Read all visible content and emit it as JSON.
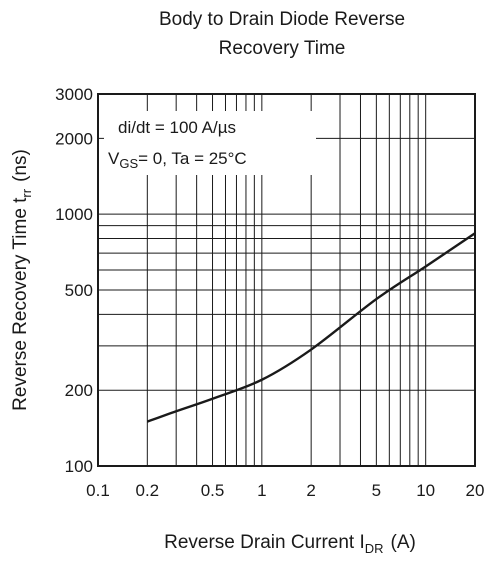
{
  "chart_data": {
    "type": "line",
    "title_line1": "Body to Drain Diode Reverse",
    "title_line2": "Recovery Time",
    "xlabel_main": "Reverse Drain Current  I",
    "xlabel_sub": "DR",
    "xlabel_unit": "(A)",
    "ylabel_main": "Reverse Recovery Time  t",
    "ylabel_sub": "rr",
    "ylabel_unit": "(ns)",
    "xscale": "log",
    "yscale": "log",
    "xlim": [
      0.1,
      20
    ],
    "ylim": [
      100,
      3000
    ],
    "x_ticks": [
      {
        "value": 0.1,
        "label": "0.1"
      },
      {
        "value": 0.2,
        "label": "0.2"
      },
      {
        "value": 0.5,
        "label": "0.5"
      },
      {
        "value": 1,
        "label": "1"
      },
      {
        "value": 2,
        "label": "2"
      },
      {
        "value": 5,
        "label": "5"
      },
      {
        "value": 10,
        "label": "10"
      },
      {
        "value": 20,
        "label": "20"
      }
    ],
    "y_ticks": [
      {
        "value": 100,
        "label": "100"
      },
      {
        "value": 200,
        "label": "200"
      },
      {
        "value": 500,
        "label": "500"
      },
      {
        "value": 1000,
        "label": "1000"
      },
      {
        "value": 2000,
        "label": "2000"
      },
      {
        "value": 3000,
        "label": "3000"
      }
    ],
    "x_grid": [
      0.2,
      0.3,
      0.4,
      0.5,
      0.6,
      0.7,
      0.8,
      0.9,
      1,
      2,
      3,
      4,
      5,
      6,
      7,
      8,
      9,
      10
    ],
    "y_grid": [
      200,
      300,
      400,
      500,
      600,
      700,
      800,
      900,
      1000,
      2000
    ],
    "annotation_line1": "di/dt = 100 A/µs",
    "annotation_line2_pre": "V",
    "annotation_line2_sub": "GS",
    "annotation_line2_post": "= 0,  Ta = 25°C",
    "series": [
      {
        "x": [
          0.2,
          0.3,
          0.5,
          1,
          2,
          5,
          10,
          20
        ],
        "y": [
          150,
          165,
          185,
          220,
          290,
          460,
          620,
          840
        ]
      }
    ]
  }
}
